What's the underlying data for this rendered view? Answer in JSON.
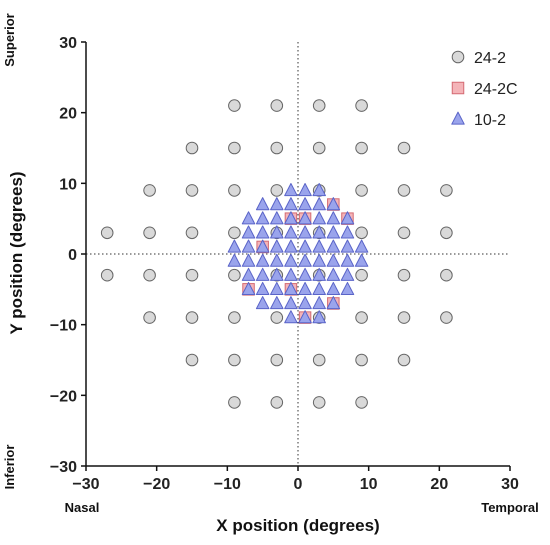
{
  "chart_data": {
    "type": "scatter",
    "xlabel": "X position (degrees)",
    "ylabel": "Y position (degrees)",
    "xlim": [
      -30,
      30
    ],
    "ylim": [
      -30,
      30
    ],
    "x_ticks": [
      -30,
      -20,
      -10,
      0,
      10,
      20,
      30
    ],
    "y_ticks": [
      -30,
      -20,
      -10,
      0,
      10,
      20,
      30
    ],
    "grid": false,
    "reference_lines": "dotted lines at x=0 and y=0",
    "legend_position": "top-right",
    "side_labels": {
      "left_top": "Superior",
      "left_bottom": "Inferior",
      "bottom_left": "Nasal",
      "bottom_right": "Temporal"
    },
    "series": [
      {
        "name": "24-2",
        "marker": "circle",
        "color": "#d9d9d9",
        "stroke": "#666666",
        "points": [
          [
            -9,
            21
          ],
          [
            -3,
            21
          ],
          [
            3,
            21
          ],
          [
            9,
            21
          ],
          [
            -15,
            15
          ],
          [
            -9,
            15
          ],
          [
            -3,
            15
          ],
          [
            3,
            15
          ],
          [
            9,
            15
          ],
          [
            15,
            15
          ],
          [
            -21,
            9
          ],
          [
            -15,
            9
          ],
          [
            -9,
            9
          ],
          [
            -3,
            9
          ],
          [
            3,
            9
          ],
          [
            9,
            9
          ],
          [
            15,
            9
          ],
          [
            21,
            9
          ],
          [
            -27,
            3
          ],
          [
            -21,
            3
          ],
          [
            -15,
            3
          ],
          [
            -9,
            3
          ],
          [
            -3,
            3
          ],
          [
            3,
            3
          ],
          [
            9,
            3
          ],
          [
            15,
            3
          ],
          [
            21,
            3
          ],
          [
            -27,
            -3
          ],
          [
            -21,
            -3
          ],
          [
            -15,
            -3
          ],
          [
            -9,
            -3
          ],
          [
            -3,
            -3
          ],
          [
            3,
            -3
          ],
          [
            9,
            -3
          ],
          [
            15,
            -3
          ],
          [
            21,
            -3
          ],
          [
            -21,
            -9
          ],
          [
            -15,
            -9
          ],
          [
            -9,
            -9
          ],
          [
            -3,
            -9
          ],
          [
            3,
            -9
          ],
          [
            9,
            -9
          ],
          [
            15,
            -9
          ],
          [
            21,
            -9
          ],
          [
            -15,
            -15
          ],
          [
            -9,
            -15
          ],
          [
            -3,
            -15
          ],
          [
            3,
            -15
          ],
          [
            9,
            -15
          ],
          [
            15,
            -15
          ],
          [
            -9,
            -21
          ],
          [
            -3,
            -21
          ],
          [
            3,
            -21
          ],
          [
            9,
            -21
          ]
        ]
      },
      {
        "name": "24-2C",
        "marker": "square",
        "color": "#f4b4b8",
        "stroke": "#d46a72",
        "points": [
          [
            -1,
            5
          ],
          [
            1,
            5
          ],
          [
            5,
            7
          ],
          [
            7,
            5
          ],
          [
            -5,
            1
          ],
          [
            -7,
            -5
          ],
          [
            -1,
            -5
          ],
          [
            5,
            -7
          ],
          [
            1,
            -9
          ]
        ]
      },
      {
        "name": "10-2",
        "marker": "triangle",
        "color": "#9aa4ec",
        "stroke": "#5a64c8",
        "points": [
          [
            -1,
            9
          ],
          [
            1,
            9
          ],
          [
            3,
            9
          ],
          [
            -5,
            7
          ],
          [
            -3,
            7
          ],
          [
            -1,
            7
          ],
          [
            1,
            7
          ],
          [
            3,
            7
          ],
          [
            5,
            7
          ],
          [
            -7,
            5
          ],
          [
            -5,
            5
          ],
          [
            -3,
            5
          ],
          [
            -1,
            5
          ],
          [
            1,
            5
          ],
          [
            3,
            5
          ],
          [
            5,
            5
          ],
          [
            7,
            5
          ],
          [
            -7,
            3
          ],
          [
            -5,
            3
          ],
          [
            -3,
            3
          ],
          [
            -1,
            3
          ],
          [
            1,
            3
          ],
          [
            3,
            3
          ],
          [
            5,
            3
          ],
          [
            7,
            3
          ],
          [
            -9,
            1
          ],
          [
            -7,
            1
          ],
          [
            -5,
            1
          ],
          [
            -3,
            1
          ],
          [
            -1,
            1
          ],
          [
            1,
            1
          ],
          [
            3,
            1
          ],
          [
            5,
            1
          ],
          [
            7,
            1
          ],
          [
            9,
            1
          ],
          [
            -9,
            -1
          ],
          [
            -7,
            -1
          ],
          [
            -5,
            -1
          ],
          [
            -3,
            -1
          ],
          [
            -1,
            -1
          ],
          [
            1,
            -1
          ],
          [
            3,
            -1
          ],
          [
            5,
            -1
          ],
          [
            7,
            -1
          ],
          [
            9,
            -1
          ],
          [
            -7,
            -3
          ],
          [
            -5,
            -3
          ],
          [
            -3,
            -3
          ],
          [
            -1,
            -3
          ],
          [
            1,
            -3
          ],
          [
            3,
            -3
          ],
          [
            5,
            -3
          ],
          [
            7,
            -3
          ],
          [
            -7,
            -5
          ],
          [
            -5,
            -5
          ],
          [
            -3,
            -5
          ],
          [
            -1,
            -5
          ],
          [
            1,
            -5
          ],
          [
            3,
            -5
          ],
          [
            5,
            -5
          ],
          [
            7,
            -5
          ],
          [
            -5,
            -7
          ],
          [
            -3,
            -7
          ],
          [
            -1,
            -7
          ],
          [
            1,
            -7
          ],
          [
            3,
            -7
          ],
          [
            5,
            -7
          ],
          [
            -1,
            -9
          ],
          [
            1,
            -9
          ],
          [
            3,
            -9
          ]
        ]
      }
    ]
  }
}
